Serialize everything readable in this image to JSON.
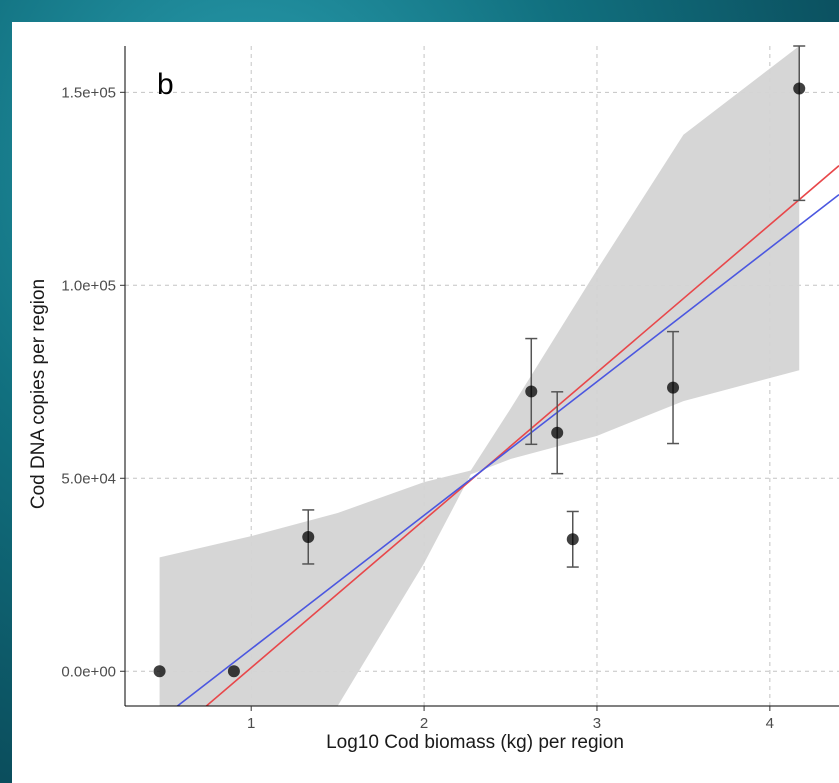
{
  "chart_data": {
    "type": "scatter",
    "panel_label": "b",
    "xlabel": "Log10 Cod biomass (kg) per region",
    "ylabel": "Cod DNA copies per region",
    "xlim": [
      0.27,
      4.4
    ],
    "ylim": [
      -9000,
      162000
    ],
    "x_ticks": [
      1,
      2,
      3,
      4
    ],
    "y_ticks": [
      0,
      50000,
      100000,
      150000
    ],
    "y_tick_labels": [
      "0.0e+00",
      "5.0e+04",
      "1.0e+05",
      "1.5e+05"
    ],
    "grid": true,
    "points": [
      {
        "x": 0.47,
        "y": 0,
        "lo": null,
        "hi": null
      },
      {
        "x": 0.9,
        "y": 0,
        "lo": null,
        "hi": null
      },
      {
        "x": 1.33,
        "y": 34800,
        "lo": 27800,
        "hi": 41800
      },
      {
        "x": 2.62,
        "y": 72500,
        "lo": 58800,
        "hi": 86200
      },
      {
        "x": 2.77,
        "y": 61800,
        "lo": 51200,
        "hi": 72400
      },
      {
        "x": 2.86,
        "y": 34200,
        "lo": 27000,
        "hi": 41400
      },
      {
        "x": 3.44,
        "y": 73500,
        "lo": 59000,
        "hi": 88000
      },
      {
        "x": 4.17,
        "y": 151000,
        "lo": 122000,
        "hi": 162000
      }
    ],
    "confidence_band": {
      "x": [
        0.47,
        1.0,
        1.5,
        2.0,
        2.27,
        2.5,
        3.0,
        3.5,
        4.17
      ],
      "upper": [
        29500,
        35000,
        41000,
        49000,
        52000,
        68000,
        104000,
        139000,
        162000
      ],
      "lower": [
        -9000,
        -9000,
        -9000,
        28000,
        51000,
        55000,
        61000,
        70000,
        78000
      ]
    },
    "series": [
      {
        "color": "#e8474a",
        "x": [
          0.27,
          4.4
        ],
        "y": [
          -27000,
          131000
        ]
      },
      {
        "color": "#4b57e0",
        "x": [
          0.27,
          4.4
        ],
        "y": [
          -19500,
          123500
        ]
      }
    ]
  }
}
